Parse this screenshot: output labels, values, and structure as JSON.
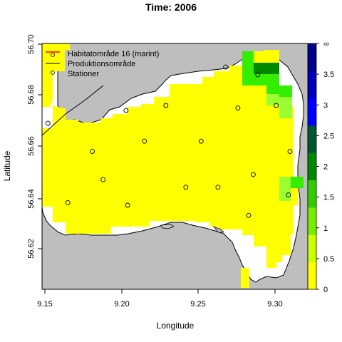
{
  "title": "Time: 2006",
  "xlabel": "Longitude",
  "ylabel": "Latitude",
  "x_ticks": [
    "9.15",
    "9.20",
    "9.25",
    "9.30"
  ],
  "y_ticks": [
    "56.62",
    "56.64",
    "56.66",
    "56.68",
    "56.70"
  ],
  "legend": [
    {
      "label": "Habitatområde 16 (marint)",
      "symbol": "line-circle",
      "color": "#ff0000"
    },
    {
      "label": "Produktionsområde",
      "symbol": "line",
      "color": "#000000"
    },
    {
      "label": "Stationer",
      "symbol": "circle",
      "color": "#000000"
    }
  ],
  "colorbar": {
    "ticks": [
      "0",
      "0.5",
      "1",
      "1.5",
      "2",
      "2.5",
      "3",
      "3.5",
      "∞"
    ],
    "colors": [
      "#ffff00",
      "#ccff00",
      "#77ee00",
      "#33cc00",
      "#008800",
      "#005533",
      "#0000ff",
      "#0000bb",
      "#000088"
    ]
  },
  "colors": {
    "land": "#bebebe",
    "water": "#ffffff",
    "cell_yellow": "#ffff00",
    "cell_lightgreen": "#99ff33",
    "cell_green": "#33ee00",
    "cell_darkgreen": "#008800"
  },
  "chart_data": {
    "type": "heatmap",
    "title": "Time: 2006",
    "xlabel": "Longitude",
    "ylabel": "Latitude",
    "xlim": [
      9.15,
      9.325
    ],
    "ylim": [
      56.603,
      56.7
    ],
    "cell_size": [
      0.00625,
      0.0035
    ],
    "value_scale": [
      0,
      0.5,
      1,
      1.5,
      2,
      2.5,
      3,
      3.5,
      "∞"
    ],
    "high_value_cells": [
      {
        "lon_min": 9.2875,
        "lat_min": 56.695,
        "lon_max": 9.29375,
        "lat_max": 56.7,
        "value": 1.2
      },
      {
        "lon_min": 9.29375,
        "lat_min": 56.6885,
        "lon_max": 9.3062,
        "lat_max": 56.6925,
        "value": 1.9
      },
      {
        "lon_min": 9.29375,
        "lat_min": 56.685,
        "lon_max": 9.3062,
        "lat_max": 56.6885,
        "value": 1.3
      },
      {
        "lon_min": 9.2875,
        "lat_min": 56.685,
        "lon_max": 9.29375,
        "lat_max": 56.695,
        "value": 1.2
      },
      {
        "lon_min": 9.29375,
        "lat_min": 56.6815,
        "lon_max": 9.3062,
        "lat_max": 56.685,
        "value": 1.2
      },
      {
        "lon_min": 9.3062,
        "lat_min": 56.678,
        "lon_max": 9.3125,
        "lat_max": 56.6815,
        "value": 1.2
      },
      {
        "lon_min": 9.3,
        "lat_min": 56.6675,
        "lon_max": 9.3125,
        "lat_max": 56.678,
        "value": 0.8
      },
      {
        "lon_min": 9.3062,
        "lat_min": 56.6465,
        "lon_max": 9.3125,
        "lat_max": 56.65,
        "value": 1.2
      },
      {
        "lon_min": 9.3,
        "lat_min": 56.639,
        "lon_max": 9.3062,
        "lat_max": 56.6465,
        "value": 0.8
      }
    ],
    "stations": [
      {
        "lon": 9.152,
        "lat": 56.669
      },
      {
        "lon": 9.165,
        "lat": 56.638
      },
      {
        "lon": 9.181,
        "lat": 56.658
      },
      {
        "lon": 9.188,
        "lat": 56.647
      },
      {
        "lon": 9.203,
        "lat": 56.674
      },
      {
        "lon": 9.204,
        "lat": 56.637
      },
      {
        "lon": 9.215,
        "lat": 56.662
      },
      {
        "lon": 9.229,
        "lat": 56.676
      },
      {
        "lon": 9.242,
        "lat": 56.644
      },
      {
        "lon": 9.252,
        "lat": 56.662
      },
      {
        "lon": 9.263,
        "lat": 56.644
      },
      {
        "lon": 9.268,
        "lat": 56.691
      },
      {
        "lon": 9.276,
        "lat": 56.675
      },
      {
        "lon": 9.283,
        "lat": 56.633
      },
      {
        "lon": 9.286,
        "lat": 56.649
      },
      {
        "lon": 9.289,
        "lat": 56.688
      },
      {
        "lon": 9.301,
        "lat": 56.676
      },
      {
        "lon": 9.309,
        "lat": 56.641
      },
      {
        "lon": 9.31,
        "lat": 56.658
      }
    ],
    "legend_position": "top-left"
  }
}
